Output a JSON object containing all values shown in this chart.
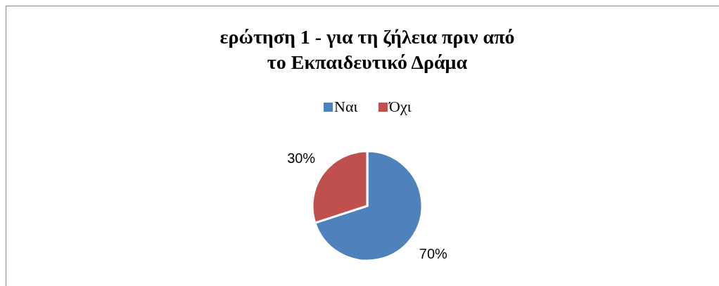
{
  "chart_data": {
    "type": "pie",
    "title": "ερώτηση 1 - για τη ζήλεια πριν από\nτο Εκπαιδευτικό Δράμα",
    "categories": [
      "Ναι",
      "Όχι"
    ],
    "values": [
      70,
      30
    ],
    "colors": [
      "#4f81bd",
      "#c0504d"
    ],
    "value_labels": [
      "70%",
      "30%"
    ],
    "legend": "top"
  }
}
